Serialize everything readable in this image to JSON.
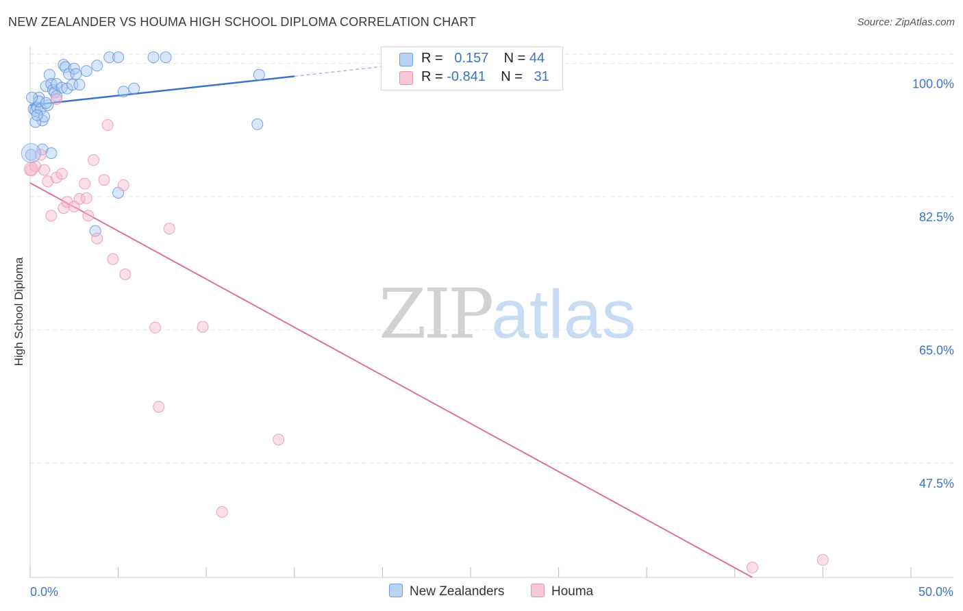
{
  "title": "NEW ZEALANDER VS HOUMA HIGH SCHOOL DIPLOMA CORRELATION CHART",
  "source": "Source: ZipAtlas.com",
  "watermark": {
    "zip": "ZIP",
    "atlas": "atlas"
  },
  "colors": {
    "blue": "#3b73c8",
    "blue_fill": "#a9c8f2",
    "pink": "#e0709a",
    "pink_fill": "#f6b8cc",
    "grid": "#e4e4e4",
    "axis_text": "#3b73c8"
  },
  "legend": {
    "rows": [
      {
        "r_label": "R =",
        "r_value": "0.157",
        "n_label": "N =",
        "n_value": "44"
      },
      {
        "r_label": "R =",
        "r_value": "-0.841",
        "n_label": "N =",
        "n_value": "31"
      }
    ]
  },
  "bottom_legend": [
    "New Zealanders",
    "Houma"
  ],
  "chart_data": {
    "type": "scatter",
    "title": "NEW ZEALANDER VS HOUMA HIGH SCHOOL DIPLOMA CORRELATION CHART",
    "xlabel": "",
    "ylabel": "High School Diploma",
    "xlim": [
      0,
      50
    ],
    "ylim": [
      32.5,
      102.2
    ],
    "x_tick_labels": [
      "0.0%",
      "50.0%"
    ],
    "y_ticks": [
      47.5,
      65.0,
      82.5,
      100.0
    ],
    "y_tick_labels": [
      "47.5%",
      "65.0%",
      "82.5%",
      "100.0%"
    ],
    "grid": true,
    "series": [
      {
        "name": "New Zealanders",
        "r": 0.157,
        "n": 44,
        "trend": {
          "x0": 0,
          "y0": 94.5,
          "x1": 15,
          "y1": 98.3,
          "dash_to_x": 22,
          "dash_to_y": 100.1
        },
        "points": [
          [
            0.2,
            94.0
          ],
          [
            0.3,
            93.8
          ],
          [
            0.4,
            94.2
          ],
          [
            0.5,
            95.5
          ],
          [
            0.6,
            94.0
          ],
          [
            0.7,
            92.5
          ],
          [
            0.8,
            93.0
          ],
          [
            0.9,
            97.0
          ],
          [
            1.0,
            94.5
          ],
          [
            1.1,
            98.5
          ],
          [
            1.2,
            97.3
          ],
          [
            1.3,
            96.5
          ],
          [
            1.4,
            96.2
          ],
          [
            1.5,
            97.3
          ],
          [
            1.8,
            96.8
          ],
          [
            1.9,
            99.8
          ],
          [
            2.0,
            99.5
          ],
          [
            2.1,
            96.7
          ],
          [
            2.2,
            98.6
          ],
          [
            2.4,
            97.2
          ],
          [
            2.5,
            99.3
          ],
          [
            2.8,
            97.2
          ],
          [
            3.2,
            99.0
          ],
          [
            3.8,
            99.7
          ],
          [
            4.5,
            100.8
          ],
          [
            5.0,
            100.8
          ],
          [
            7.0,
            100.8
          ],
          [
            7.7,
            100.8
          ],
          [
            13.0,
            98.5
          ],
          [
            5.3,
            96.3
          ],
          [
            5.9,
            96.7
          ],
          [
            0.3,
            92.3
          ],
          [
            0.5,
            95.0
          ],
          [
            0.1,
            95.5
          ],
          [
            0.7,
            88.7
          ],
          [
            1.2,
            88.2
          ],
          [
            0.05,
            88.0
          ],
          [
            5.0,
            83.0
          ],
          [
            3.7,
            78.0
          ],
          [
            12.9,
            92.0
          ],
          [
            1.5,
            95.7
          ],
          [
            0.9,
            94.8
          ],
          [
            2.6,
            98.6
          ],
          [
            0.4,
            93.2
          ]
        ]
      },
      {
        "name": "Houma",
        "r": -0.841,
        "n": 31,
        "trend": {
          "x0": 0,
          "y0": 84.3,
          "x1": 41,
          "y1": 32.5
        },
        "points": [
          [
            0.05,
            86.0
          ],
          [
            0.3,
            86.5
          ],
          [
            0.6,
            88.0
          ],
          [
            0.8,
            86.0
          ],
          [
            1.0,
            84.5
          ],
          [
            1.2,
            80.0
          ],
          [
            1.5,
            95.3
          ],
          [
            1.5,
            85.0
          ],
          [
            1.8,
            85.5
          ],
          [
            1.9,
            81.0
          ],
          [
            2.1,
            81.8
          ],
          [
            2.5,
            81.2
          ],
          [
            2.8,
            82.2
          ],
          [
            3.1,
            84.2
          ],
          [
            3.2,
            82.3
          ],
          [
            3.3,
            80.0
          ],
          [
            3.6,
            87.3
          ],
          [
            3.8,
            77.0
          ],
          [
            4.2,
            84.7
          ],
          [
            4.4,
            91.9
          ],
          [
            4.7,
            74.3
          ],
          [
            5.3,
            84.0
          ],
          [
            5.4,
            72.3
          ],
          [
            7.1,
            65.3
          ],
          [
            7.9,
            78.3
          ],
          [
            9.8,
            65.4
          ],
          [
            7.3,
            54.9
          ],
          [
            14.1,
            50.6
          ],
          [
            10.9,
            41.1
          ],
          [
            41.0,
            33.8
          ],
          [
            45.0,
            34.8
          ]
        ]
      }
    ]
  }
}
